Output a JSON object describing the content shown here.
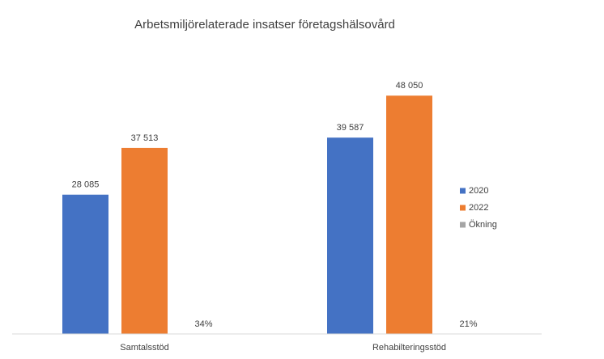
{
  "chart_data": {
    "type": "bar",
    "title": "Arbetsmiljörelaterade insatser företagshälsovård",
    "categories": [
      "Samtalsstöd",
      "Rehabilteringsstöd"
    ],
    "series": [
      {
        "name": "2020",
        "color": "#4472c4",
        "values": [
          28085,
          39587
        ],
        "value_labels": [
          "28 085",
          "39 587"
        ]
      },
      {
        "name": "2022",
        "color": "#ed7d31",
        "values": [
          37513,
          48050
        ],
        "value_labels": [
          "37 513",
          "48 050"
        ]
      },
      {
        "name": "Ökning",
        "color": "#a5a5a5",
        "values": [
          0.34,
          0.21
        ],
        "value_labels": [
          "34%",
          "21%"
        ]
      }
    ],
    "ylim": [
      0,
      60000
    ],
    "grid": false,
    "legend": "right"
  }
}
